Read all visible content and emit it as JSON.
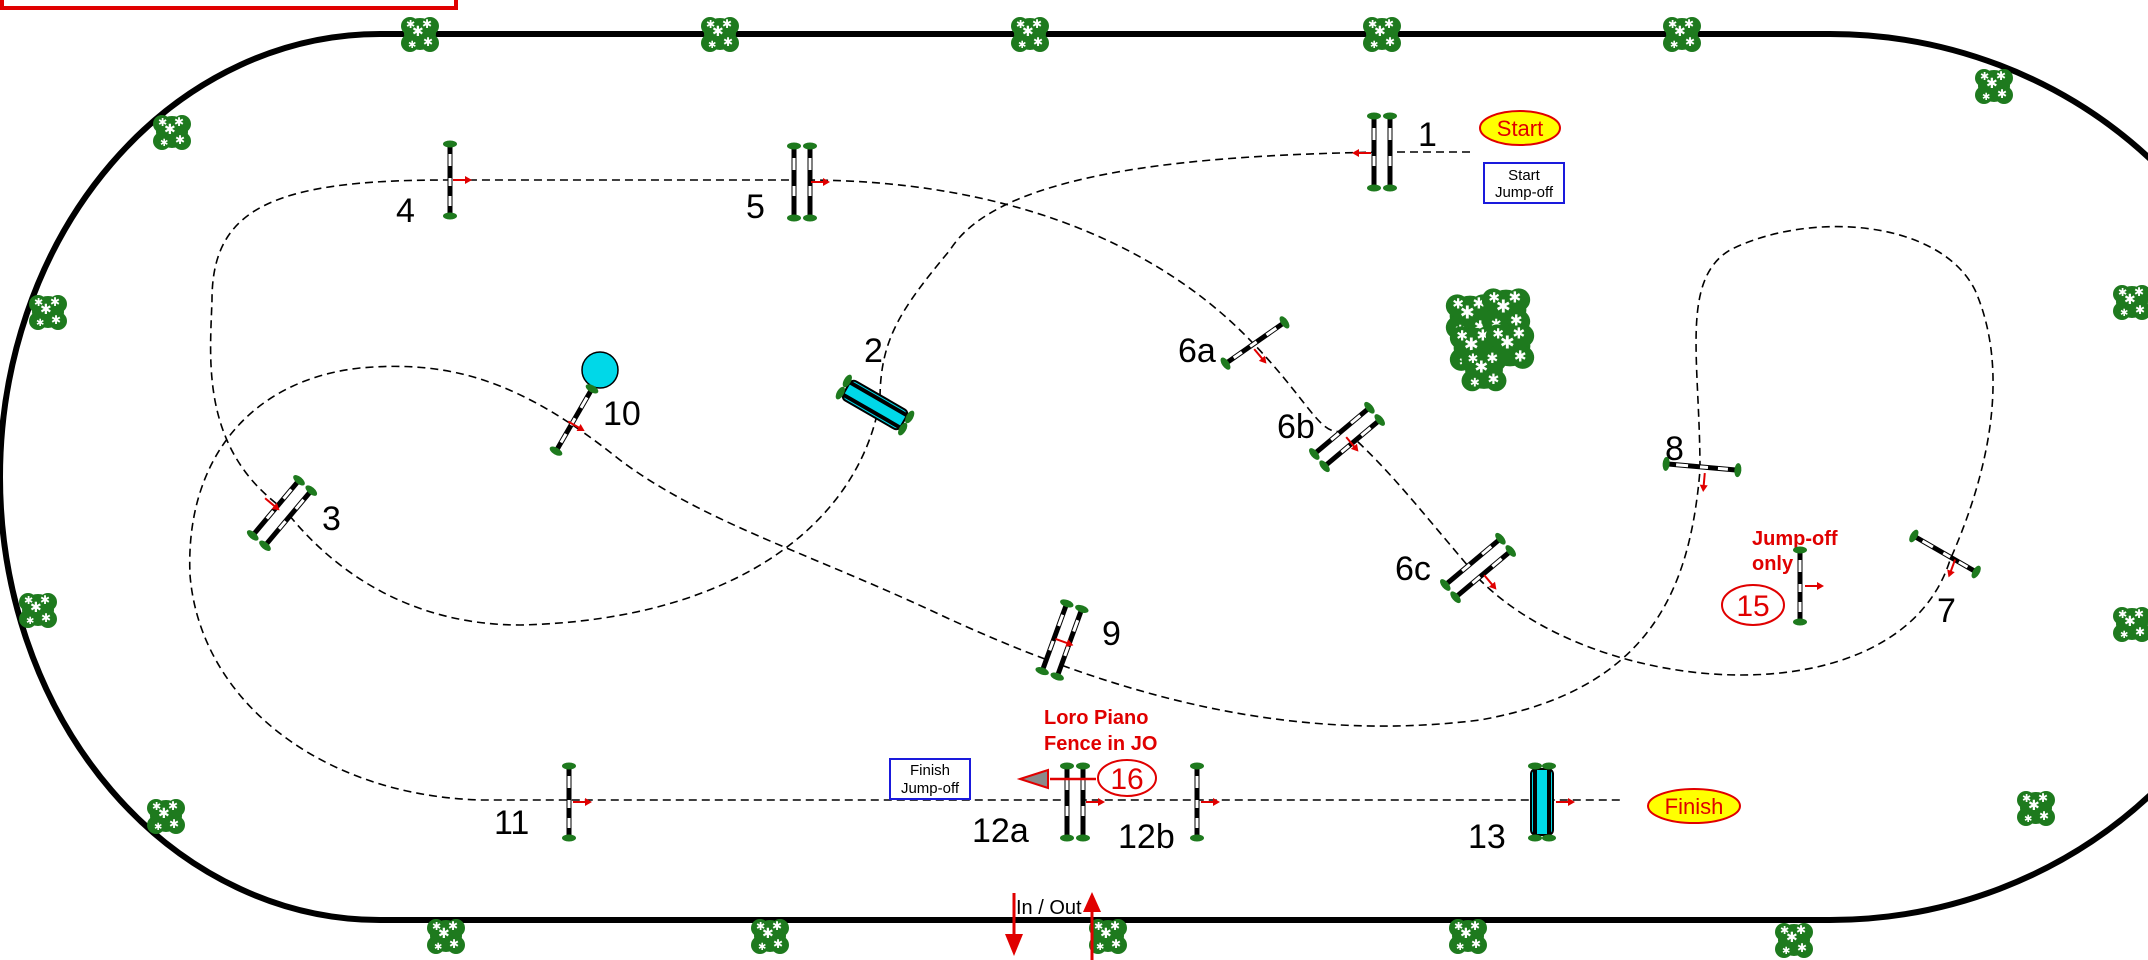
{
  "course": {
    "jumps": [
      {
        "id": "1",
        "label": "1"
      },
      {
        "id": "2",
        "label": "2"
      },
      {
        "id": "3",
        "label": "3"
      },
      {
        "id": "4",
        "label": "4"
      },
      {
        "id": "5",
        "label": "5"
      },
      {
        "id": "6a",
        "label": "6a"
      },
      {
        "id": "6b",
        "label": "6b"
      },
      {
        "id": "6c",
        "label": "6c"
      },
      {
        "id": "7",
        "label": "7"
      },
      {
        "id": "8",
        "label": "8"
      },
      {
        "id": "9",
        "label": "9"
      },
      {
        "id": "10",
        "label": "10"
      },
      {
        "id": "11",
        "label": "11"
      },
      {
        "id": "12a",
        "label": "12a"
      },
      {
        "id": "12b",
        "label": "12b"
      },
      {
        "id": "13",
        "label": "13"
      }
    ],
    "start_label": "Start",
    "finish_label": "Finish",
    "start_jumpoff": [
      "Start",
      "Jump-off"
    ],
    "finish_jumpoff": [
      "Finish",
      "Jump-off"
    ],
    "jumpoff_only_note": [
      "Jump-off",
      "only"
    ],
    "jumpoff_15": "15",
    "jumpoff_16": "16",
    "loro_piano_note": [
      "Loro Piano",
      "Fence in JO"
    ],
    "in_out_label": "In / Out"
  },
  "colors": {
    "arena_border": "#000000",
    "path": "#000000",
    "note_red": "#e00000",
    "pill_fill": "#ffff00",
    "tree_green": "#1e7a1e",
    "water_cyan": "#00d8e8",
    "jumpoff_box_border": "#1a1adc"
  }
}
